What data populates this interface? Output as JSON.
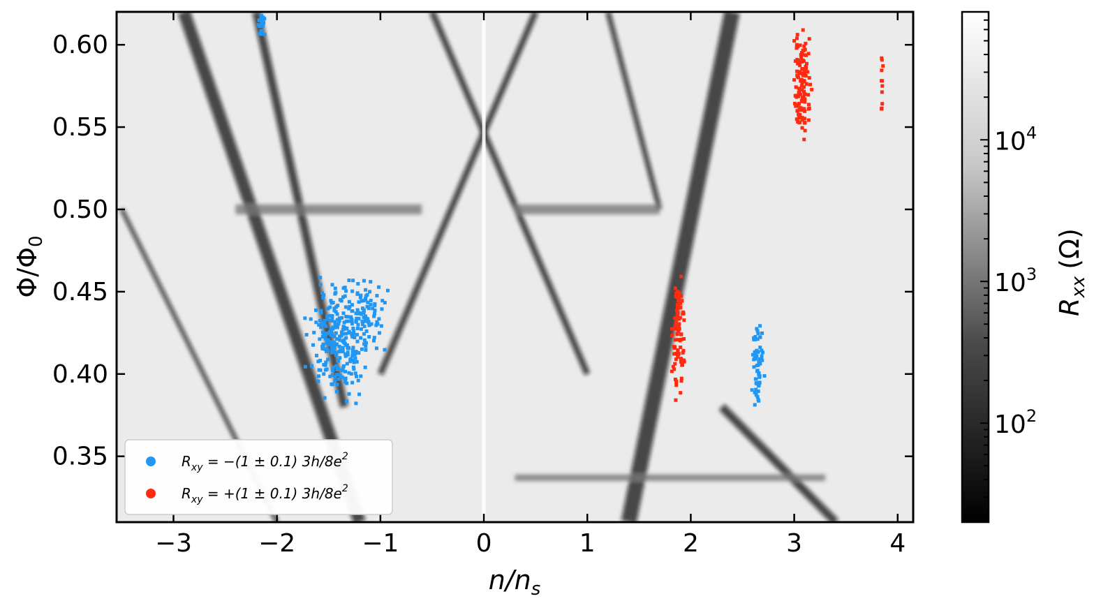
{
  "chart_data": {
    "type": "heatmap",
    "title": "",
    "xlabel_base": "n/n",
    "xlabel_sub": "s",
    "ylabel_base": "Φ/Φ",
    "ylabel_sub": "0",
    "xlim": [
      -3.55,
      4.15
    ],
    "ylim": [
      0.31,
      0.62
    ],
    "xticks": [
      -3,
      -2,
      -1,
      0,
      1,
      2,
      3,
      4
    ],
    "xtick_labels": [
      "−3",
      "−2",
      "−1",
      "0",
      "1",
      "2",
      "3",
      "4"
    ],
    "yticks": [
      0.35,
      0.4,
      0.45,
      0.5,
      0.55,
      0.6
    ],
    "ytick_labels": [
      "0.35",
      "0.40",
      "0.45",
      "0.50",
      "0.55",
      "0.60"
    ],
    "grid": false,
    "colorbar": {
      "label_base": "R",
      "label_sub": "xx",
      "label_unit": "(Ω)",
      "scale": "log",
      "range": [
        20,
        80000
      ],
      "ticks": [
        100,
        1000,
        10000
      ],
      "tick_bases": [
        "10",
        "10",
        "10"
      ],
      "tick_exponents": [
        "2",
        "3",
        "4"
      ],
      "colormap": "gray"
    },
    "legend": {
      "placement": "lower-left",
      "entries": [
        {
          "label_prefix": "R",
          "label_sub": "xy",
          "label_body": " = −(1 ± 0.1) 3h/8e",
          "label_sup": "2",
          "color": "#2196f3"
        },
        {
          "label_prefix": "R",
          "label_sub": "xy",
          "label_body": " = +(1 ± 0.1) 3h/8e",
          "label_sup": "2",
          "color": "#ff2a10"
        }
      ]
    },
    "series": [
      {
        "color": "#2196f3",
        "regions": [
          {
            "n": -1.4,
            "phi": 0.42,
            "spread_n": 0.25,
            "spread_phi": 0.03,
            "count": 260
          },
          {
            "n": -1.15,
            "phi": 0.435,
            "spread_n": 0.18,
            "spread_phi": 0.02,
            "count": 80
          },
          {
            "n": 2.65,
            "phi": 0.405,
            "spread_n": 0.05,
            "spread_phi": 0.025,
            "count": 60
          },
          {
            "n": -2.15,
            "phi": 0.612,
            "spread_n": 0.04,
            "spread_phi": 0.008,
            "count": 20
          }
        ]
      },
      {
        "color": "#ff2a10",
        "regions": [
          {
            "n": 1.88,
            "phi": 0.425,
            "spread_n": 0.05,
            "spread_phi": 0.035,
            "count": 90
          },
          {
            "n": 3.08,
            "phi": 0.575,
            "spread_n": 0.08,
            "spread_phi": 0.035,
            "count": 120
          },
          {
            "n": 3.85,
            "phi": 0.575,
            "spread_n": 0.01,
            "spread_phi": 0.02,
            "count": 12
          }
        ]
      }
    ],
    "rxx_background": {
      "dark_lines": [
        {
          "n": [
            -2.9,
            -1.2
          ],
          "phi": [
            0.62,
            0.31
          ],
          "width": 0.12
        },
        {
          "n": [
            -2.2,
            -1.35
          ],
          "phi": [
            0.62,
            0.38
          ],
          "width": 0.08
        },
        {
          "n": [
            -0.5,
            1.0
          ],
          "phi": [
            0.62,
            0.4
          ],
          "width": 0.06
        },
        {
          "n": [
            0.5,
            -1.0
          ],
          "phi": [
            0.62,
            0.4
          ],
          "width": 0.06
        },
        {
          "n": [
            2.4,
            1.4
          ],
          "phi": [
            0.62,
            0.31
          ],
          "width": 0.15
        },
        {
          "n": [
            2.3,
            3.4
          ],
          "phi": [
            0.38,
            0.31
          ],
          "width": 0.08
        },
        {
          "n": [
            1.2,
            1.7
          ],
          "phi": [
            0.62,
            0.5
          ],
          "width": 0.05
        },
        {
          "n": [
            -3.5,
            -2.0
          ],
          "phi": [
            0.5,
            0.31
          ],
          "width": 0.04
        }
      ],
      "dark_bands": [
        {
          "n": [
            -2.4,
            -0.6
          ],
          "phi": 0.5,
          "height": 0.006
        },
        {
          "n": [
            0.3,
            1.7
          ],
          "phi": 0.5,
          "height": 0.006
        },
        {
          "n": [
            0.3,
            3.3
          ],
          "phi": 0.337,
          "height": 0.004
        }
      ]
    }
  }
}
